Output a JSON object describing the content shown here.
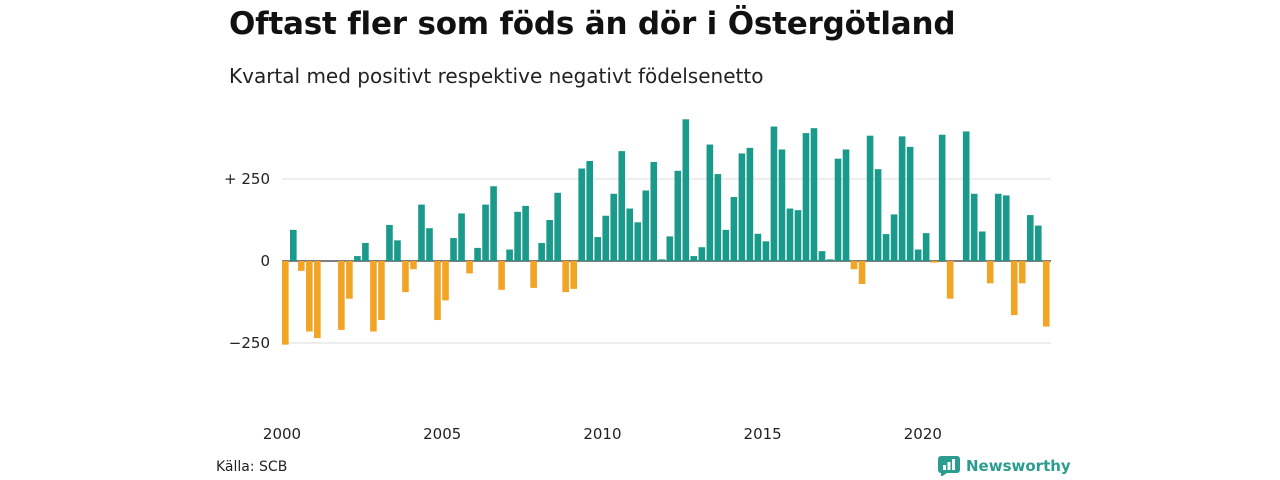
{
  "header": {
    "title": "Oftast fler som föds än dör i Östergötland",
    "subtitle": "Kvartal med positivt respektive negativt födelsenetto"
  },
  "footer": {
    "source": "Källa: SCB",
    "brand": "Newsworthy"
  },
  "colors": {
    "positive": "#1a9a8a",
    "negative": "#f2a424",
    "grid": "#dddddd",
    "brand": "#2a9d8f"
  },
  "chart_data": {
    "type": "bar",
    "x_start": "2000 Q1",
    "ylim": [
      -400,
      450
    ],
    "y_ticks": [
      {
        "value": 250,
        "label": "+ 250"
      },
      {
        "value": 0,
        "label": "0"
      },
      {
        "value": -250,
        "label": "−250"
      }
    ],
    "x_ticks": [
      {
        "label": "2000",
        "index": 0
      },
      {
        "label": "2005",
        "index": 20
      },
      {
        "label": "2010",
        "index": 40
      },
      {
        "label": "2015",
        "index": 60
      },
      {
        "label": "2020",
        "index": 80
      }
    ],
    "values": [
      -255,
      95,
      -30,
      -215,
      -235,
      0,
      0,
      -210,
      -115,
      15,
      55,
      -215,
      -180,
      110,
      63,
      -95,
      -25,
      172,
      100,
      -180,
      -120,
      70,
      145,
      -38,
      40,
      172,
      228,
      -88,
      35,
      150,
      168,
      -82,
      55,
      125,
      208,
      -95,
      -85,
      282,
      305,
      73,
      138,
      205,
      335,
      160,
      118,
      215,
      302,
      5,
      75,
      275,
      432,
      15,
      42,
      355,
      265,
      95,
      195,
      328,
      345,
      83,
      60,
      410,
      340,
      160,
      155,
      390,
      405,
      30,
      5,
      312,
      340,
      -25,
      -70,
      382,
      280,
      82,
      142,
      380,
      348,
      35,
      85,
      -5,
      385,
      -115,
      0,
      395,
      205,
      90,
      -68,
      205,
      200,
      -165,
      -68,
      140,
      108,
      -200
    ]
  }
}
